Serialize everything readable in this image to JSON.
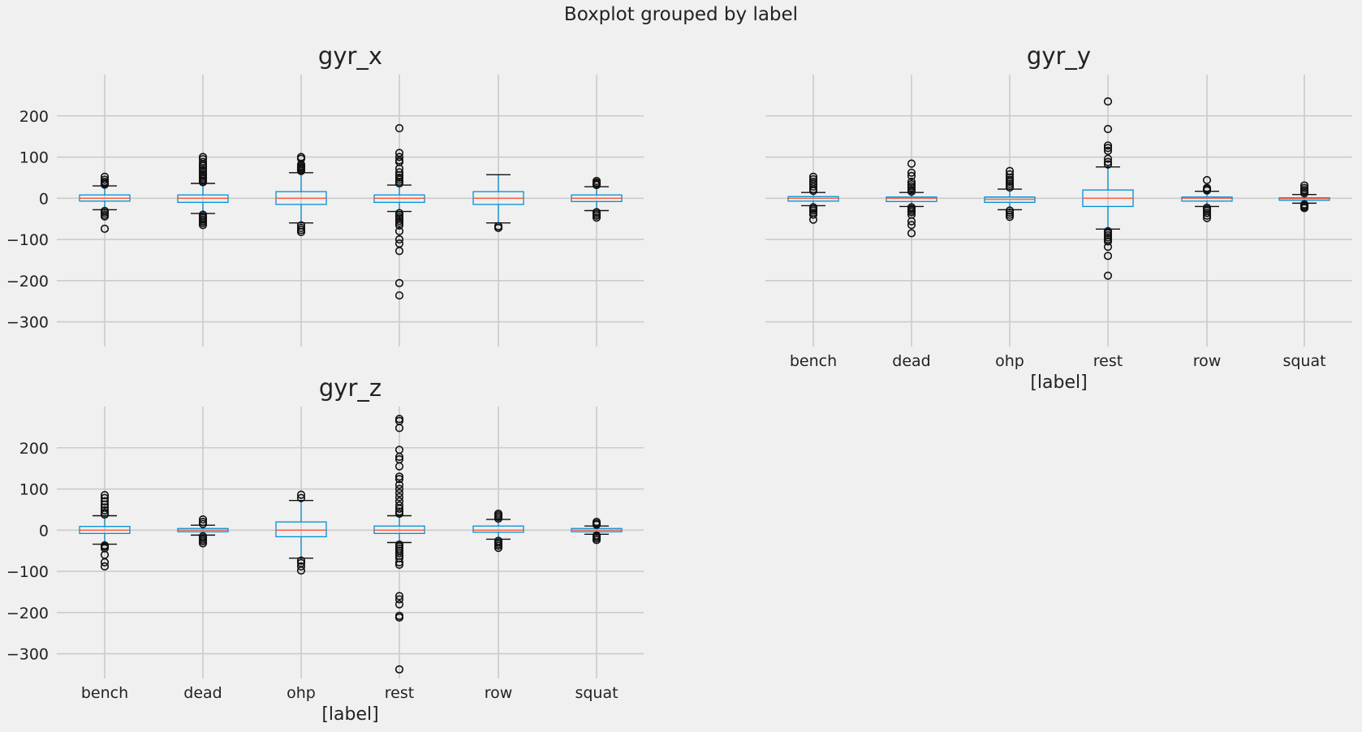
{
  "figure": {
    "suptitle": "Boxplot grouped by label"
  },
  "chart_data": [
    {
      "type": "box",
      "title": "gyr_x",
      "xlabel": "[label]",
      "show_xlabel": false,
      "show_xticklabels": false,
      "show_yticklabels": true,
      "ylim": [
        -360,
        300
      ],
      "yticks": [
        200,
        100,
        0,
        -100,
        -200,
        -300
      ],
      "ytick_labels": [
        "200",
        "100",
        "0",
        "−100",
        "−200",
        "−300"
      ],
      "grid": true,
      "categories": [
        "bench",
        "dead",
        "ohp",
        "rest",
        "row",
        "squat"
      ],
      "boxes": [
        {
          "q1": -7,
          "median": 0,
          "q3": 8,
          "whisker_low": -28,
          "whisker_high": 30,
          "outliers": [
            52,
            45,
            40,
            36,
            33,
            -31,
            -35,
            -40,
            -44,
            -74
          ]
        },
        {
          "q1": -10,
          "median": 0,
          "q3": 8,
          "whisker_low": -37,
          "whisker_high": 36,
          "outliers": [
            100,
            95,
            88,
            82,
            78,
            73,
            68,
            63,
            58,
            54,
            50,
            46,
            42,
            39,
            -40,
            -44,
            -48,
            -52,
            -56,
            -60,
            -65
          ]
        },
        {
          "q1": -15,
          "median": 0,
          "q3": 16,
          "whisker_low": -60,
          "whisker_high": 62,
          "outliers": [
            100,
            96,
            82,
            78,
            75,
            72,
            69,
            66,
            -66,
            -72,
            -77,
            -82
          ]
        },
        {
          "q1": -10,
          "median": 0,
          "q3": 8,
          "whisker_low": -32,
          "whisker_high": 32,
          "outliers": [
            170,
            110,
            100,
            92,
            88,
            72,
            63,
            56,
            50,
            45,
            40,
            36,
            -36,
            -41,
            -46,
            -50,
            -55,
            -60,
            -66,
            -80,
            -100,
            -110,
            -128,
            -206,
            -236
          ]
        },
        {
          "q1": -15,
          "median": 0,
          "q3": 16,
          "whisker_low": -60,
          "whisker_high": 57,
          "outliers": [
            -68,
            -72
          ]
        },
        {
          "q1": -8,
          "median": 0,
          "q3": 8,
          "whisker_low": -30,
          "whisker_high": 28,
          "outliers": [
            42,
            38,
            35,
            32,
            -34,
            -38,
            -42,
            -47
          ]
        }
      ]
    },
    {
      "type": "box",
      "title": "gyr_y",
      "xlabel": "[label]",
      "show_xlabel": true,
      "show_xticklabels": true,
      "show_yticklabels": false,
      "ylim": [
        -360,
        300
      ],
      "yticks": [
        200,
        100,
        0,
        -100,
        -200,
        -300
      ],
      "ytick_labels": [
        "200",
        "100",
        "0",
        "−100",
        "−200",
        "−300"
      ],
      "grid": true,
      "categories": [
        "bench",
        "dead",
        "ohp",
        "rest",
        "row",
        "squat"
      ],
      "boxes": [
        {
          "q1": -7,
          "median": 0,
          "q3": 4,
          "whisker_low": -18,
          "whisker_high": 14,
          "outliers": [
            52,
            46,
            40,
            34,
            28,
            22,
            18,
            -22,
            -26,
            -30,
            -35,
            -40,
            -52
          ]
        },
        {
          "q1": -8,
          "median": 0,
          "q3": 3,
          "whisker_low": -20,
          "whisker_high": 14,
          "outliers": [
            84,
            62,
            54,
            40,
            34,
            29,
            25,
            20,
            16,
            -22,
            -26,
            -30,
            -34,
            -40,
            -56,
            -65,
            -85
          ]
        },
        {
          "q1": -10,
          "median": -3,
          "q3": 3,
          "whisker_low": -28,
          "whisker_high": 22,
          "outliers": [
            66,
            58,
            50,
            45,
            40,
            35,
            30,
            26,
            -30,
            -35,
            -40,
            -45
          ]
        },
        {
          "q1": -20,
          "median": 0,
          "q3": 20,
          "whisker_low": -75,
          "whisker_high": 76,
          "outliers": [
            235,
            168,
            128,
            122,
            115,
            96,
            88,
            82,
            -80,
            -85,
            -90,
            -95,
            -100,
            -105,
            -118,
            -140,
            -188
          ]
        },
        {
          "q1": -7,
          "median": 0,
          "q3": 3,
          "whisker_low": -20,
          "whisker_high": 17,
          "outliers": [
            44,
            25,
            22,
            19,
            -23,
            -27,
            -31,
            -36,
            -42,
            -48
          ]
        },
        {
          "q1": -5,
          "median": -1,
          "q3": 1,
          "whisker_low": -12,
          "whisker_high": 9,
          "outliers": [
            31,
            25,
            20,
            16,
            12,
            -15,
            -18,
            -21,
            -24
          ]
        }
      ]
    },
    {
      "type": "box",
      "title": "gyr_z",
      "xlabel": "[label]",
      "show_xlabel": true,
      "show_xticklabels": true,
      "show_yticklabels": true,
      "ylim": [
        -360,
        300
      ],
      "yticks": [
        200,
        100,
        0,
        -100,
        -200,
        -300
      ],
      "ytick_labels": [
        "200",
        "100",
        "0",
        "−100",
        "−200",
        "−300"
      ],
      "grid": true,
      "categories": [
        "bench",
        "dead",
        "ohp",
        "rest",
        "row",
        "squat"
      ],
      "boxes": [
        {
          "q1": -8,
          "median": 0,
          "q3": 9,
          "whisker_low": -34,
          "whisker_high": 35,
          "outliers": [
            85,
            78,
            70,
            62,
            55,
            48,
            42,
            38,
            -37,
            -40,
            -44,
            -60,
            -78,
            -88
          ]
        },
        {
          "q1": -4,
          "median": 0,
          "q3": 4,
          "whisker_low": -12,
          "whisker_high": 12,
          "outliers": [
            26,
            20,
            15,
            -15,
            -19,
            -23,
            -27,
            -32
          ]
        },
        {
          "q1": -16,
          "median": 0,
          "q3": 20,
          "whisker_low": -68,
          "whisker_high": 72,
          "outliers": [
            86,
            78,
            -74,
            -80,
            -88,
            -98
          ]
        },
        {
          "q1": -8,
          "median": 0,
          "q3": 10,
          "whisker_low": -30,
          "whisker_high": 35,
          "outliers": [
            270,
            265,
            248,
            195,
            178,
            172,
            155,
            130,
            124,
            110,
            100,
            90,
            80,
            70,
            60,
            52,
            45,
            40,
            -35,
            -40,
            -45,
            -50,
            -56,
            -62,
            -68,
            -78,
            -84,
            -160,
            -168,
            -180,
            -208,
            -212,
            -338
          ]
        },
        {
          "q1": -5,
          "median": 0,
          "q3": 10,
          "whisker_low": -22,
          "whisker_high": 26,
          "outliers": [
            40,
            36,
            32,
            28,
            -26,
            -30,
            -34,
            -38,
            -43
          ]
        },
        {
          "q1": -4,
          "median": 0,
          "q3": 4,
          "whisker_low": -10,
          "whisker_high": 10,
          "outliers": [
            20,
            16,
            13,
            -13,
            -16,
            -20,
            -24
          ]
        }
      ]
    }
  ],
  "colors": {
    "background": "#f0f0f0",
    "grid": "#cbcbcb",
    "box": "#008fd5",
    "median": "#fc4f30",
    "whisker": "#111111",
    "outlier": "#111111",
    "text": "#222222"
  }
}
